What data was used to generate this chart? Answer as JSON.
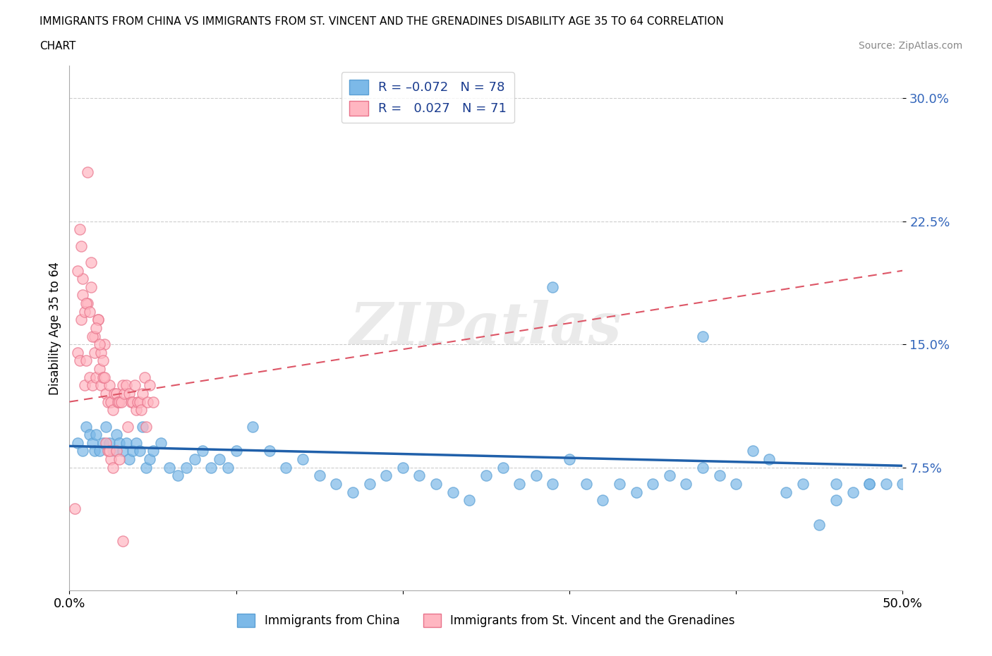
{
  "title_line1": "IMMIGRANTS FROM CHINA VS IMMIGRANTS FROM ST. VINCENT AND THE GRENADINES DISABILITY AGE 35 TO 64 CORRELATION",
  "title_line2": "CHART",
  "source": "Source: ZipAtlas.com",
  "ylabel": "Disability Age 35 to 64",
  "xlim": [
    0.0,
    0.5
  ],
  "ylim": [
    0.0,
    0.32
  ],
  "yticks": [
    0.075,
    0.15,
    0.225,
    0.3
  ],
  "ytick_labels": [
    "7.5%",
    "15.0%",
    "22.5%",
    "30.0%"
  ],
  "china_color": "#7cb9e8",
  "china_edge_color": "#5a9fd4",
  "stvincent_color": "#ffb6c1",
  "stvincent_edge_color": "#e8728a",
  "trendline_china_color": "#2060aa",
  "trendline_sv_color": "#dd5566",
  "china_R": -0.072,
  "china_N": 78,
  "stvincent_R": 0.027,
  "stvincent_N": 71,
  "legend_label_china": "Immigrants from China",
  "legend_label_stvincent": "Immigrants from St. Vincent and the Grenadines",
  "watermark": "ZIPatlas",
  "china_trend_x0": 0.0,
  "china_trend_y0": 0.088,
  "china_trend_x1": 0.5,
  "china_trend_y1": 0.076,
  "sv_trend_x0": 0.0,
  "sv_trend_y0": 0.115,
  "sv_trend_x1": 0.5,
  "sv_trend_y1": 0.195,
  "china_scatter_x": [
    0.005,
    0.008,
    0.01,
    0.012,
    0.014,
    0.015,
    0.016,
    0.018,
    0.02,
    0.022,
    0.024,
    0.026,
    0.028,
    0.03,
    0.032,
    0.034,
    0.036,
    0.038,
    0.04,
    0.042,
    0.044,
    0.046,
    0.048,
    0.05,
    0.055,
    0.06,
    0.065,
    0.07,
    0.075,
    0.08,
    0.085,
    0.09,
    0.095,
    0.1,
    0.11,
    0.12,
    0.13,
    0.14,
    0.15,
    0.16,
    0.17,
    0.18,
    0.19,
    0.2,
    0.21,
    0.22,
    0.23,
    0.24,
    0.25,
    0.26,
    0.27,
    0.28,
    0.29,
    0.3,
    0.31,
    0.32,
    0.33,
    0.34,
    0.35,
    0.36,
    0.37,
    0.38,
    0.39,
    0.4,
    0.41,
    0.42,
    0.43,
    0.44,
    0.45,
    0.46,
    0.47,
    0.48,
    0.29,
    0.38,
    0.49,
    0.46,
    0.5,
    0.48
  ],
  "china_scatter_y": [
    0.09,
    0.085,
    0.1,
    0.095,
    0.09,
    0.085,
    0.095,
    0.085,
    0.09,
    0.1,
    0.09,
    0.085,
    0.095,
    0.09,
    0.085,
    0.09,
    0.08,
    0.085,
    0.09,
    0.085,
    0.1,
    0.075,
    0.08,
    0.085,
    0.09,
    0.075,
    0.07,
    0.075,
    0.08,
    0.085,
    0.075,
    0.08,
    0.075,
    0.085,
    0.1,
    0.085,
    0.075,
    0.08,
    0.07,
    0.065,
    0.06,
    0.065,
    0.07,
    0.075,
    0.07,
    0.065,
    0.06,
    0.055,
    0.07,
    0.075,
    0.065,
    0.07,
    0.065,
    0.08,
    0.065,
    0.055,
    0.065,
    0.06,
    0.065,
    0.07,
    0.065,
    0.075,
    0.07,
    0.065,
    0.085,
    0.08,
    0.06,
    0.065,
    0.04,
    0.055,
    0.06,
    0.065,
    0.185,
    0.155,
    0.065,
    0.065,
    0.065,
    0.065
  ],
  "stvincent_scatter_x": [
    0.003,
    0.005,
    0.006,
    0.007,
    0.008,
    0.009,
    0.01,
    0.011,
    0.012,
    0.013,
    0.014,
    0.015,
    0.016,
    0.017,
    0.018,
    0.019,
    0.02,
    0.021,
    0.022,
    0.023,
    0.024,
    0.025,
    0.026,
    0.027,
    0.028,
    0.029,
    0.03,
    0.031,
    0.032,
    0.033,
    0.034,
    0.035,
    0.036,
    0.037,
    0.038,
    0.039,
    0.04,
    0.041,
    0.042,
    0.043,
    0.044,
    0.045,
    0.046,
    0.047,
    0.048,
    0.05,
    0.005,
    0.007,
    0.009,
    0.011,
    0.013,
    0.015,
    0.017,
    0.019,
    0.021,
    0.023,
    0.025,
    0.006,
    0.008,
    0.01,
    0.012,
    0.014,
    0.016,
    0.018,
    0.02,
    0.022,
    0.024,
    0.026,
    0.028,
    0.03,
    0.032
  ],
  "stvincent_scatter_y": [
    0.05,
    0.145,
    0.14,
    0.165,
    0.19,
    0.125,
    0.14,
    0.175,
    0.13,
    0.185,
    0.125,
    0.145,
    0.13,
    0.165,
    0.135,
    0.125,
    0.13,
    0.15,
    0.12,
    0.115,
    0.125,
    0.115,
    0.11,
    0.12,
    0.12,
    0.115,
    0.115,
    0.115,
    0.125,
    0.12,
    0.125,
    0.1,
    0.12,
    0.115,
    0.115,
    0.125,
    0.11,
    0.115,
    0.115,
    0.11,
    0.12,
    0.13,
    0.1,
    0.115,
    0.125,
    0.115,
    0.195,
    0.21,
    0.17,
    0.255,
    0.2,
    0.155,
    0.165,
    0.145,
    0.13,
    0.085,
    0.08,
    0.22,
    0.18,
    0.175,
    0.17,
    0.155,
    0.16,
    0.15,
    0.14,
    0.09,
    0.085,
    0.075,
    0.085,
    0.08,
    0.03
  ]
}
